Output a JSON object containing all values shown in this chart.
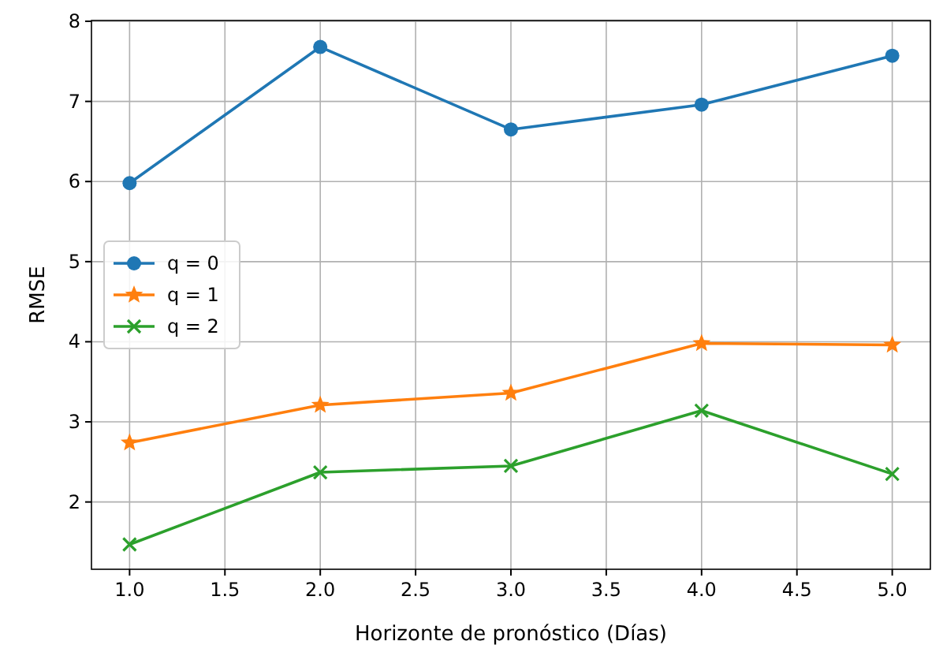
{
  "chart_data": {
    "type": "line",
    "xlabel": "Horizonte de pronóstico (Días)",
    "ylabel": "RMSE",
    "x": [
      1,
      2,
      3,
      4,
      5
    ],
    "xlim": [
      0.8,
      5.2
    ],
    "xticks": [
      {
        "value": 1,
        "label": "1.0"
      },
      {
        "value": 1.5,
        "label": "1.5"
      },
      {
        "value": 2,
        "label": "2.0"
      },
      {
        "value": 2.5,
        "label": "2.5"
      },
      {
        "value": 3,
        "label": "3.0"
      },
      {
        "value": 3.5,
        "label": "3.5"
      },
      {
        "value": 4,
        "label": "4.0"
      },
      {
        "value": 4.5,
        "label": "4.5"
      },
      {
        "value": 5,
        "label": "5.0"
      }
    ],
    "ylim": [
      1.16,
      8.01
    ],
    "yticks": [
      2,
      3,
      4,
      5,
      6,
      7,
      8
    ],
    "grid": true,
    "legend": "left",
    "line_style": "solid",
    "series": [
      {
        "name": "q = 0",
        "color": "#1f77b4",
        "marker": "circle",
        "values": [
          5.98,
          7.68,
          6.65,
          6.96,
          7.57
        ]
      },
      {
        "name": "q = 1",
        "color": "#ff7f0e",
        "marker": "star",
        "values": [
          2.74,
          3.21,
          3.36,
          3.98,
          3.96
        ]
      },
      {
        "name": "q = 2",
        "color": "#2ca02c",
        "marker": "cross",
        "values": [
          1.47,
          2.37,
          2.45,
          3.14,
          2.35
        ]
      }
    ]
  }
}
